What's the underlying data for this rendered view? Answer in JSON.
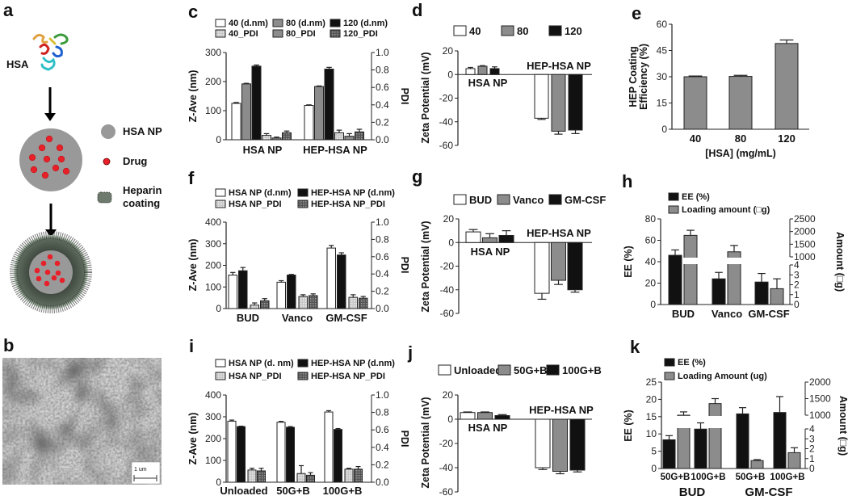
{
  "panel_labels": {
    "a": "a",
    "b": "b",
    "c": "c",
    "d": "d",
    "e": "e",
    "f": "f",
    "g": "g",
    "h": "h",
    "i": "i",
    "j": "j",
    "k": "k"
  },
  "schematic": {
    "protein_label": "HSA",
    "legend": [
      {
        "label": "HSA NP"
      },
      {
        "label": "Drug"
      },
      {
        "label": "Heparin coating"
      }
    ],
    "colors": {
      "np": "#999999",
      "drug": "#e8202a",
      "coating": "#4e5a4e"
    }
  },
  "sem": {
    "scale_bar_label": "1 um"
  },
  "chart_data": [
    {
      "panel": "c",
      "type": "bar",
      "ylabel": "Z-Ave (nm)",
      "y2label": "PDI",
      "ylim": [
        0,
        300
      ],
      "yticks": [
        0,
        100,
        200,
        300
      ],
      "y2lim": [
        0,
        1
      ],
      "y2ticks": [
        "0.0",
        "0.2",
        "0.4",
        "0.6",
        "0.8",
        "1.0"
      ],
      "categories": [
        "HSA NP",
        "HEP-HSA NP"
      ],
      "series": [
        {
          "name": "40 (d.nm)",
          "axis": "left",
          "style": "white",
          "values": [
            125,
            118
          ],
          "errors": [
            3,
            2
          ]
        },
        {
          "name": "80 (d.nm)",
          "axis": "left",
          "style": "gray",
          "values": [
            192,
            183
          ],
          "errors": [
            2,
            2
          ]
        },
        {
          "name": "120 (d.nm)",
          "axis": "left",
          "style": "black",
          "values": [
            253,
            243
          ],
          "errors": [
            4,
            6
          ]
        },
        {
          "name": "40_PDI",
          "axis": "right",
          "style": "dots",
          "values": [
            0.05,
            0.08
          ],
          "errors": [
            0.02,
            0.03
          ]
        },
        {
          "name": "80_PDI",
          "axis": "right",
          "style": "gray",
          "values": [
            0.02,
            0.04
          ],
          "errors": [
            0.01,
            0.03
          ]
        },
        {
          "name": "120_PDI",
          "axis": "right",
          "style": "hatch",
          "values": [
            0.08,
            0.09
          ],
          "errors": [
            0.02,
            0.03
          ]
        }
      ]
    },
    {
      "panel": "d",
      "type": "bar",
      "ylabel": "Zeta Potential (mV)",
      "ylim": [
        -60,
        20
      ],
      "yticks": [
        -60,
        -40,
        -20,
        0,
        20
      ],
      "categories": [
        "HSA NP",
        "HEP-HSA NP"
      ],
      "series": [
        {
          "name": "40",
          "axis": "left",
          "style": "white",
          "values": [
            5,
            -37
          ],
          "errors": [
            1,
            1
          ]
        },
        {
          "name": "80",
          "axis": "left",
          "style": "gray",
          "values": [
            7,
            -48
          ],
          "errors": [
            0.5,
            2.5
          ]
        },
        {
          "name": "120",
          "axis": "left",
          "style": "black",
          "values": [
            5,
            -47
          ],
          "errors": [
            1.5,
            3
          ]
        }
      ]
    },
    {
      "panel": "e",
      "type": "bar",
      "ylabel": "HEP Coating Efficiency (%)",
      "xlabel": "[HSA] (mg/mL)",
      "ylim": [
        0,
        60
      ],
      "yticks": [
        0,
        15,
        30,
        45,
        60
      ],
      "categories": [
        "40",
        "80",
        "120"
      ],
      "series": [
        {
          "name": "HEP Coating Efficiency",
          "axis": "left",
          "style": "gray",
          "values": [
            30,
            30.2,
            49
          ],
          "errors": [
            0.4,
            0.6,
            2
          ]
        }
      ]
    },
    {
      "panel": "f",
      "type": "bar",
      "ylabel": "Z-Ave (nm)",
      "y2label": "PDI",
      "ylim": [
        0,
        400
      ],
      "yticks": [
        0,
        100,
        200,
        300,
        400
      ],
      "y2lim": [
        0,
        1
      ],
      "y2ticks": [
        "0.0",
        "0.2",
        "0.4",
        "0.6",
        "0.8",
        "1.0"
      ],
      "categories": [
        "BUD",
        "Vanco",
        "GM-CSF"
      ],
      "series": [
        {
          "name": "HSA NP (d.nm)",
          "axis": "left",
          "style": "white",
          "values": [
            155,
            122,
            280
          ],
          "errors": [
            12,
            7,
            12
          ]
        },
        {
          "name": "HEP-HSA NP (d.nm)",
          "axis": "left",
          "style": "black",
          "values": [
            175,
            155,
            248
          ],
          "errors": [
            15,
            3,
            10
          ]
        },
        {
          "name": "HSA NP_PDI",
          "axis": "right",
          "style": "dots",
          "values": [
            0.04,
            0.14,
            0.13
          ],
          "errors": [
            0.025,
            0.02,
            0.03
          ]
        },
        {
          "name": "HEP-HSA NP_PDI",
          "axis": "right",
          "style": "hatch",
          "values": [
            0.09,
            0.15,
            0.12
          ],
          "errors": [
            0.025,
            0.02,
            0.02
          ]
        }
      ]
    },
    {
      "panel": "g",
      "type": "bar",
      "ylabel": "Zeta Potential (mV)",
      "ylim": [
        -60,
        20
      ],
      "yticks": [
        -60,
        -40,
        -20,
        0,
        20
      ],
      "categories": [
        "HSA NP",
        "HEP-HSA NP"
      ],
      "series": [
        {
          "name": "BUD",
          "axis": "left",
          "style": "white",
          "values": [
            9,
            -43
          ],
          "errors": [
            2,
            5
          ]
        },
        {
          "name": "Vanco",
          "axis": "left",
          "style": "gray",
          "values": [
            4,
            -32
          ],
          "errors": [
            3.5,
            3.5
          ]
        },
        {
          "name": "GM-CSF",
          "axis": "left",
          "style": "black",
          "values": [
            6,
            -40
          ],
          "errors": [
            4,
            2
          ]
        }
      ]
    },
    {
      "panel": "h",
      "type": "bar",
      "ylabel": "EE (%)",
      "y2label": "Amount (□g)",
      "ylim": [
        0,
        80
      ],
      "yticks": [
        0,
        20,
        40,
        60,
        80
      ],
      "y2_segments": [
        {
          "range": [
            0,
            4
          ],
          "ticks": [
            0,
            1,
            2,
            3,
            4
          ]
        },
        {
          "range": [
            1000,
            2500
          ],
          "ticks": [
            1000,
            1500,
            2000,
            2500
          ]
        }
      ],
      "categories": [
        "BUD",
        "Vanco",
        "GM-CSF"
      ],
      "series": [
        {
          "name": "EE (%)",
          "axis": "left",
          "style": "black",
          "values": [
            46,
            24,
            21
          ],
          "errors": [
            5,
            6,
            8
          ]
        },
        {
          "name": "Loading amount (□g)",
          "axis": "right",
          "style": "gray",
          "values": [
            1850,
            1200,
            1.6
          ],
          "errors": [
            200,
            250,
            1.0
          ]
        }
      ]
    },
    {
      "panel": "i",
      "type": "bar",
      "ylabel": "Z-Ave (nm)",
      "y2label": "PDI",
      "ylim": [
        0,
        400
      ],
      "yticks": [
        0,
        100,
        200,
        300,
        400
      ],
      "y2lim": [
        0,
        1
      ],
      "y2ticks": [
        "0.0",
        "0.2",
        "0.4",
        "0.6",
        "0.8",
        "1.0"
      ],
      "categories": [
        "Unloaded",
        "50G+B",
        "100G+B"
      ],
      "series": [
        {
          "name": "HSA NP (d. nm)",
          "axis": "left",
          "style": "white",
          "values": [
            280,
            275,
            322
          ],
          "errors": [
            5,
            4,
            6
          ]
        },
        {
          "name": "HEP-HSA NP (d.nm)",
          "axis": "left",
          "style": "black",
          "values": [
            255,
            252,
            242
          ],
          "errors": [
            2,
            3,
            4
          ]
        },
        {
          "name": "HSA NP_PDI",
          "axis": "right",
          "style": "dots",
          "values": [
            0.14,
            0.1,
            0.15
          ],
          "errors": [
            0.02,
            0.09,
            0.01
          ]
        },
        {
          "name": "HEP-HSA NP_PDI",
          "axis": "right",
          "style": "hatch",
          "values": [
            0.13,
            0.08,
            0.15
          ],
          "errors": [
            0.03,
            0.03,
            0.03
          ]
        }
      ]
    },
    {
      "panel": "j",
      "type": "bar",
      "ylabel": "Zeta Potential (mV)",
      "ylim": [
        -60,
        20
      ],
      "yticks": [
        -60,
        -40,
        -20,
        0,
        20
      ],
      "categories": [
        "HSA NP",
        "HEP-HSA NP"
      ],
      "series": [
        {
          "name": "Unloaded",
          "axis": "left",
          "style": "white",
          "values": [
            5.5,
            -40
          ],
          "errors": [
            0.5,
            1.5
          ]
        },
        {
          "name": "50G+B",
          "axis": "left",
          "style": "gray",
          "values": [
            5.5,
            -43
          ],
          "errors": [
            0.5,
            2
          ]
        },
        {
          "name": "100G+B",
          "axis": "left",
          "style": "black",
          "values": [
            3,
            -42
          ],
          "errors": [
            0.8,
            1.5
          ]
        }
      ]
    },
    {
      "panel": "k",
      "type": "bar",
      "ylabel": "EE (%)",
      "y2label": "Amount (□g)",
      "ylim": [
        0,
        25
      ],
      "yticks": [
        0,
        5,
        10,
        15,
        20,
        25
      ],
      "y2_segments": [
        {
          "range": [
            0,
            4
          ],
          "ticks": [
            0,
            1,
            2,
            3,
            4
          ]
        },
        {
          "range": [
            1000,
            2000
          ],
          "ticks": [
            1000,
            1500,
            2000
          ]
        }
      ],
      "categories": [
        "50G+B",
        "100G+B",
        "50G+B",
        "100G+B"
      ],
      "group_labels": [
        "BUD",
        "GM-CSF"
      ],
      "series": [
        {
          "name": "EE (%)",
          "axis": "left",
          "style": "black",
          "values": [
            8.3,
            11.4,
            15.8,
            16.2
          ],
          "errors": [
            1.2,
            1.8,
            1.8,
            4.6
          ]
        },
        {
          "name": "Loading Amount (ug)",
          "axis": "right",
          "style": "gray",
          "values": [
            1000,
            1350,
            0.8,
            1.6
          ],
          "errors": [
            100,
            150,
            0.1,
            0.5
          ]
        }
      ]
    }
  ]
}
